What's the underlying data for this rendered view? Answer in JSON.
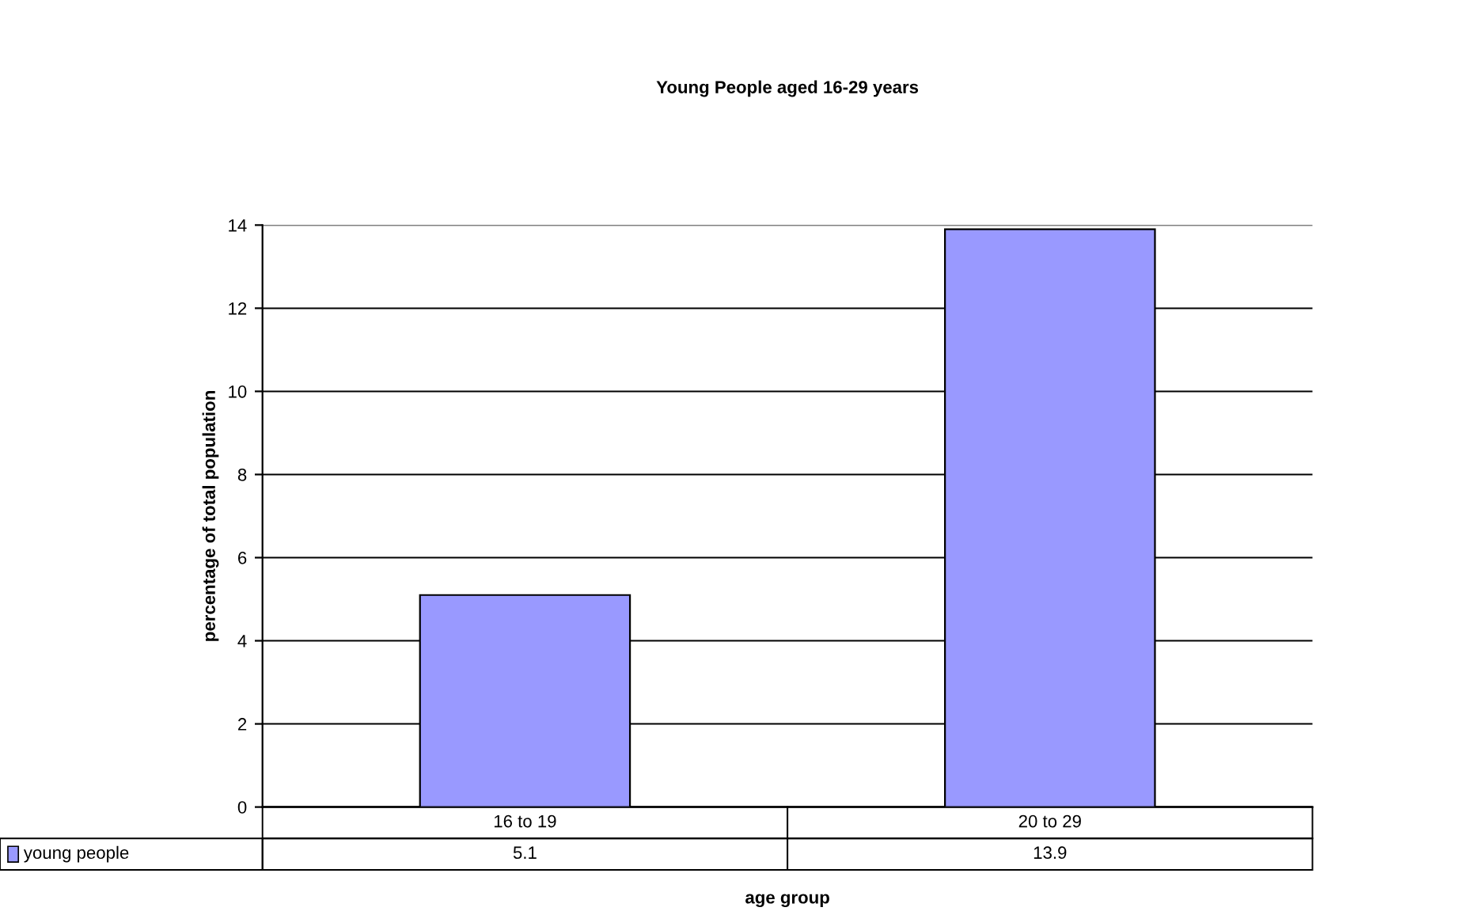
{
  "chart_data": {
    "type": "bar",
    "title": "Young People aged 16-29 years",
    "xlabel": "age group",
    "ylabel": "percentage of total population",
    "categories": [
      "16 to 19",
      "20 to 29"
    ],
    "series": [
      {
        "name": "young people",
        "color": "#9999ff",
        "values": [
          5.1,
          13.9
        ]
      }
    ],
    "ylim": [
      0,
      14
    ],
    "yticks": [
      0,
      2,
      4,
      6,
      8,
      10,
      12,
      14
    ],
    "grid": "y",
    "legend": "bottom",
    "data_labels": true
  }
}
